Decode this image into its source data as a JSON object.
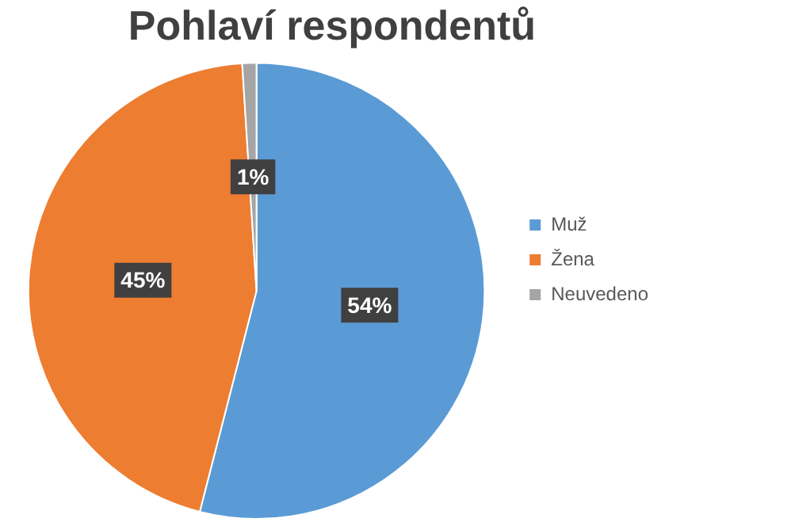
{
  "chart_data": {
    "type": "pie",
    "title": "Pohlaví respondentů",
    "categories": [
      "Muž",
      "Žena",
      "Neuvedeno"
    ],
    "values": [
      54,
      45,
      1
    ],
    "colors": [
      "#5b9bd5",
      "#ed7d31",
      "#a5a5a5"
    ],
    "value_labels": [
      "54%",
      "45%",
      "1%"
    ],
    "legend": "right"
  }
}
